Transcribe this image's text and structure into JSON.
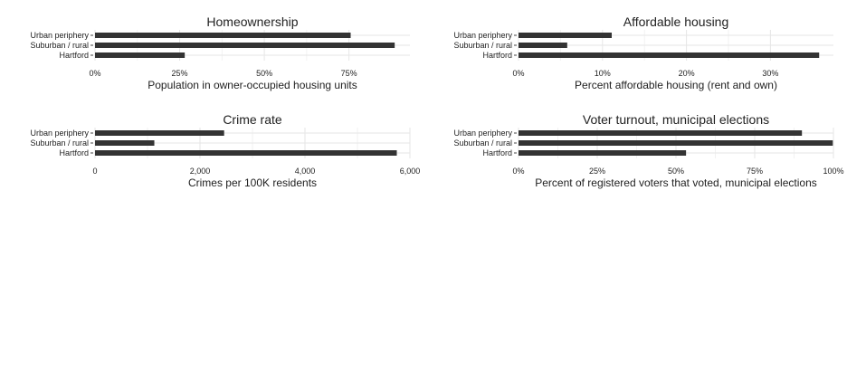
{
  "chart_data": [
    {
      "type": "bar",
      "orientation": "horizontal",
      "title": "Homeownership",
      "xlabel": "Population in owner-occupied housing units",
      "categories": [
        "Urban periphery",
        "Suburban / rural",
        "Hartford"
      ],
      "values": [
        0.755,
        0.885,
        0.265
      ],
      "xlim": [
        0,
        0.93
      ],
      "ticks": [
        0,
        0.25,
        0.5,
        0.75
      ],
      "tick_labels": [
        "0%",
        "25%",
        "50%",
        "75%"
      ],
      "grid": true
    },
    {
      "type": "bar",
      "orientation": "horizontal",
      "title": "Affordable housing",
      "xlabel": "Percent affordable housing (rent and own)",
      "categories": [
        "Urban periphery",
        "Suburban / rural",
        "Hartford"
      ],
      "values": [
        0.111,
        0.058,
        0.358
      ],
      "xlim": [
        0,
        0.375
      ],
      "ticks": [
        0,
        0.1,
        0.2,
        0.3
      ],
      "tick_labels": [
        "0%",
        "10%",
        "20%",
        "30%"
      ],
      "grid": true
    },
    {
      "type": "bar",
      "orientation": "horizontal",
      "title": "Crime rate",
      "xlabel": "Crimes per 100K residents",
      "categories": [
        "Urban periphery",
        "Suburban / rural",
        "Hartford"
      ],
      "values": [
        2460,
        1130,
        5750
      ],
      "xlim": [
        0,
        6000
      ],
      "ticks": [
        0,
        2000,
        4000,
        6000
      ],
      "tick_labels": [
        "0",
        "2,000",
        "4,000",
        "6,000"
      ],
      "grid": true
    },
    {
      "type": "bar",
      "orientation": "horizontal",
      "title": "Voter turnout, municipal elections",
      "xlabel": "Percent of registered voters that voted, municipal elections",
      "categories": [
        "Urban periphery",
        "Suburban / rural",
        "Hartford"
      ],
      "values": [
        0.9,
        0.998,
        0.532
      ],
      "xlim": [
        0,
        1.0
      ],
      "ticks": [
        0,
        0.25,
        0.5,
        0.75,
        1.0
      ],
      "tick_labels": [
        "0%",
        "25%",
        "50%",
        "75%",
        "100%"
      ],
      "grid": true
    }
  ]
}
